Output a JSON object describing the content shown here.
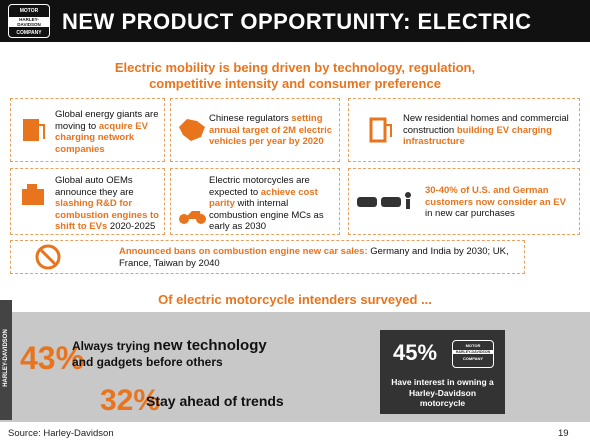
{
  "header": {
    "title": "NEW PRODUCT OPPORTUNITY: ELECTRIC"
  },
  "logo": {
    "top": "MOTOR",
    "middle": "HARLEY-DAVIDSON",
    "bottom": "COMPANY"
  },
  "intro": [
    "Electric mobility is being driven by technology, regulation,",
    "competitive intensity and consumer preference"
  ],
  "boxes": [
    [
      "Global energy giants are moving to ",
      "acquire EV charging network companies"
    ],
    [
      "Chinese regulators ",
      "setting annual target of 2M electric vehicles per year by 2020"
    ],
    [
      "New residential homes and commercial construction ",
      "building EV charging infrastructure"
    ],
    [
      "Global auto OEMs announce they are ",
      "slashing R&D for combustion engines to shift to EVs",
      " 2020-2025"
    ],
    [
      "Electric motorcycles are expected to ",
      "achieve cost parity",
      " with internal combustion engine MCs as early as 2030"
    ],
    [
      "30-40% of U.S. and German customers now consider an EV",
      " in new car purchases"
    ],
    [
      "Announced bans on combustion engine new car sales:",
      " Germany and India by 2030; UK, France, Taiwan by 2040"
    ]
  ],
  "survey": {
    "heading": "Of electric motorcycle intenders surveyed ...",
    "stats": [
      {
        "value": "43%",
        "parts": [
          "Always trying ",
          "new technology",
          "and gadgets before others"
        ]
      },
      {
        "value": "32%",
        "parts": [
          "Stay ahead of trends"
        ]
      },
      {
        "value": "45%",
        "parts": [
          "Have interest in owning a Harley-Davidson motorcycle"
        ]
      }
    ]
  },
  "side_label": "HARLEY-DAVIDSON",
  "footer": {
    "source": "Source: Harley-Davidson",
    "page": "19"
  }
}
